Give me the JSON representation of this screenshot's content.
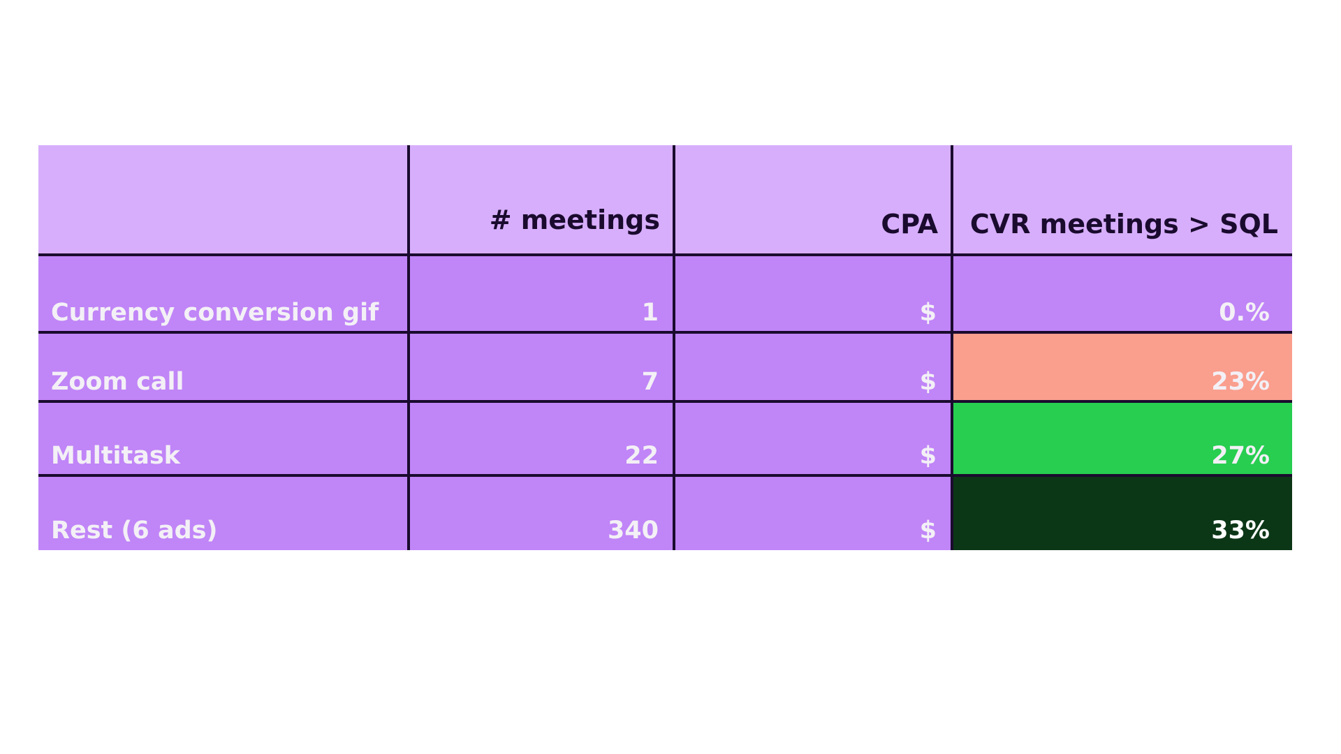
{
  "table": {
    "headers": [
      "",
      "# meetings",
      "CPA",
      "CVR meetings > SQL"
    ],
    "rows": [
      {
        "label": "Currency conversion gif",
        "meetings": "1",
        "cpa": "$",
        "cvr": "0.%",
        "cvr_color": "#c085f7"
      },
      {
        "label": "Zoom call",
        "meetings": "7",
        "cpa": "$",
        "cvr": "23%",
        "cvr_color": "#fa9e8e"
      },
      {
        "label": "Multitask",
        "meetings": "22",
        "cpa": "$",
        "cvr": "27%",
        "cvr_color": "#27ce50"
      },
      {
        "label": "Rest (6 ads)",
        "meetings": "340",
        "cpa": "$",
        "cvr": "33%",
        "cvr_color": "#0c3717"
      }
    ]
  },
  "colors": {
    "header_bg": "#d7aefb",
    "body_bg": "#c085f7",
    "grid_line": "#1a0b2e"
  }
}
